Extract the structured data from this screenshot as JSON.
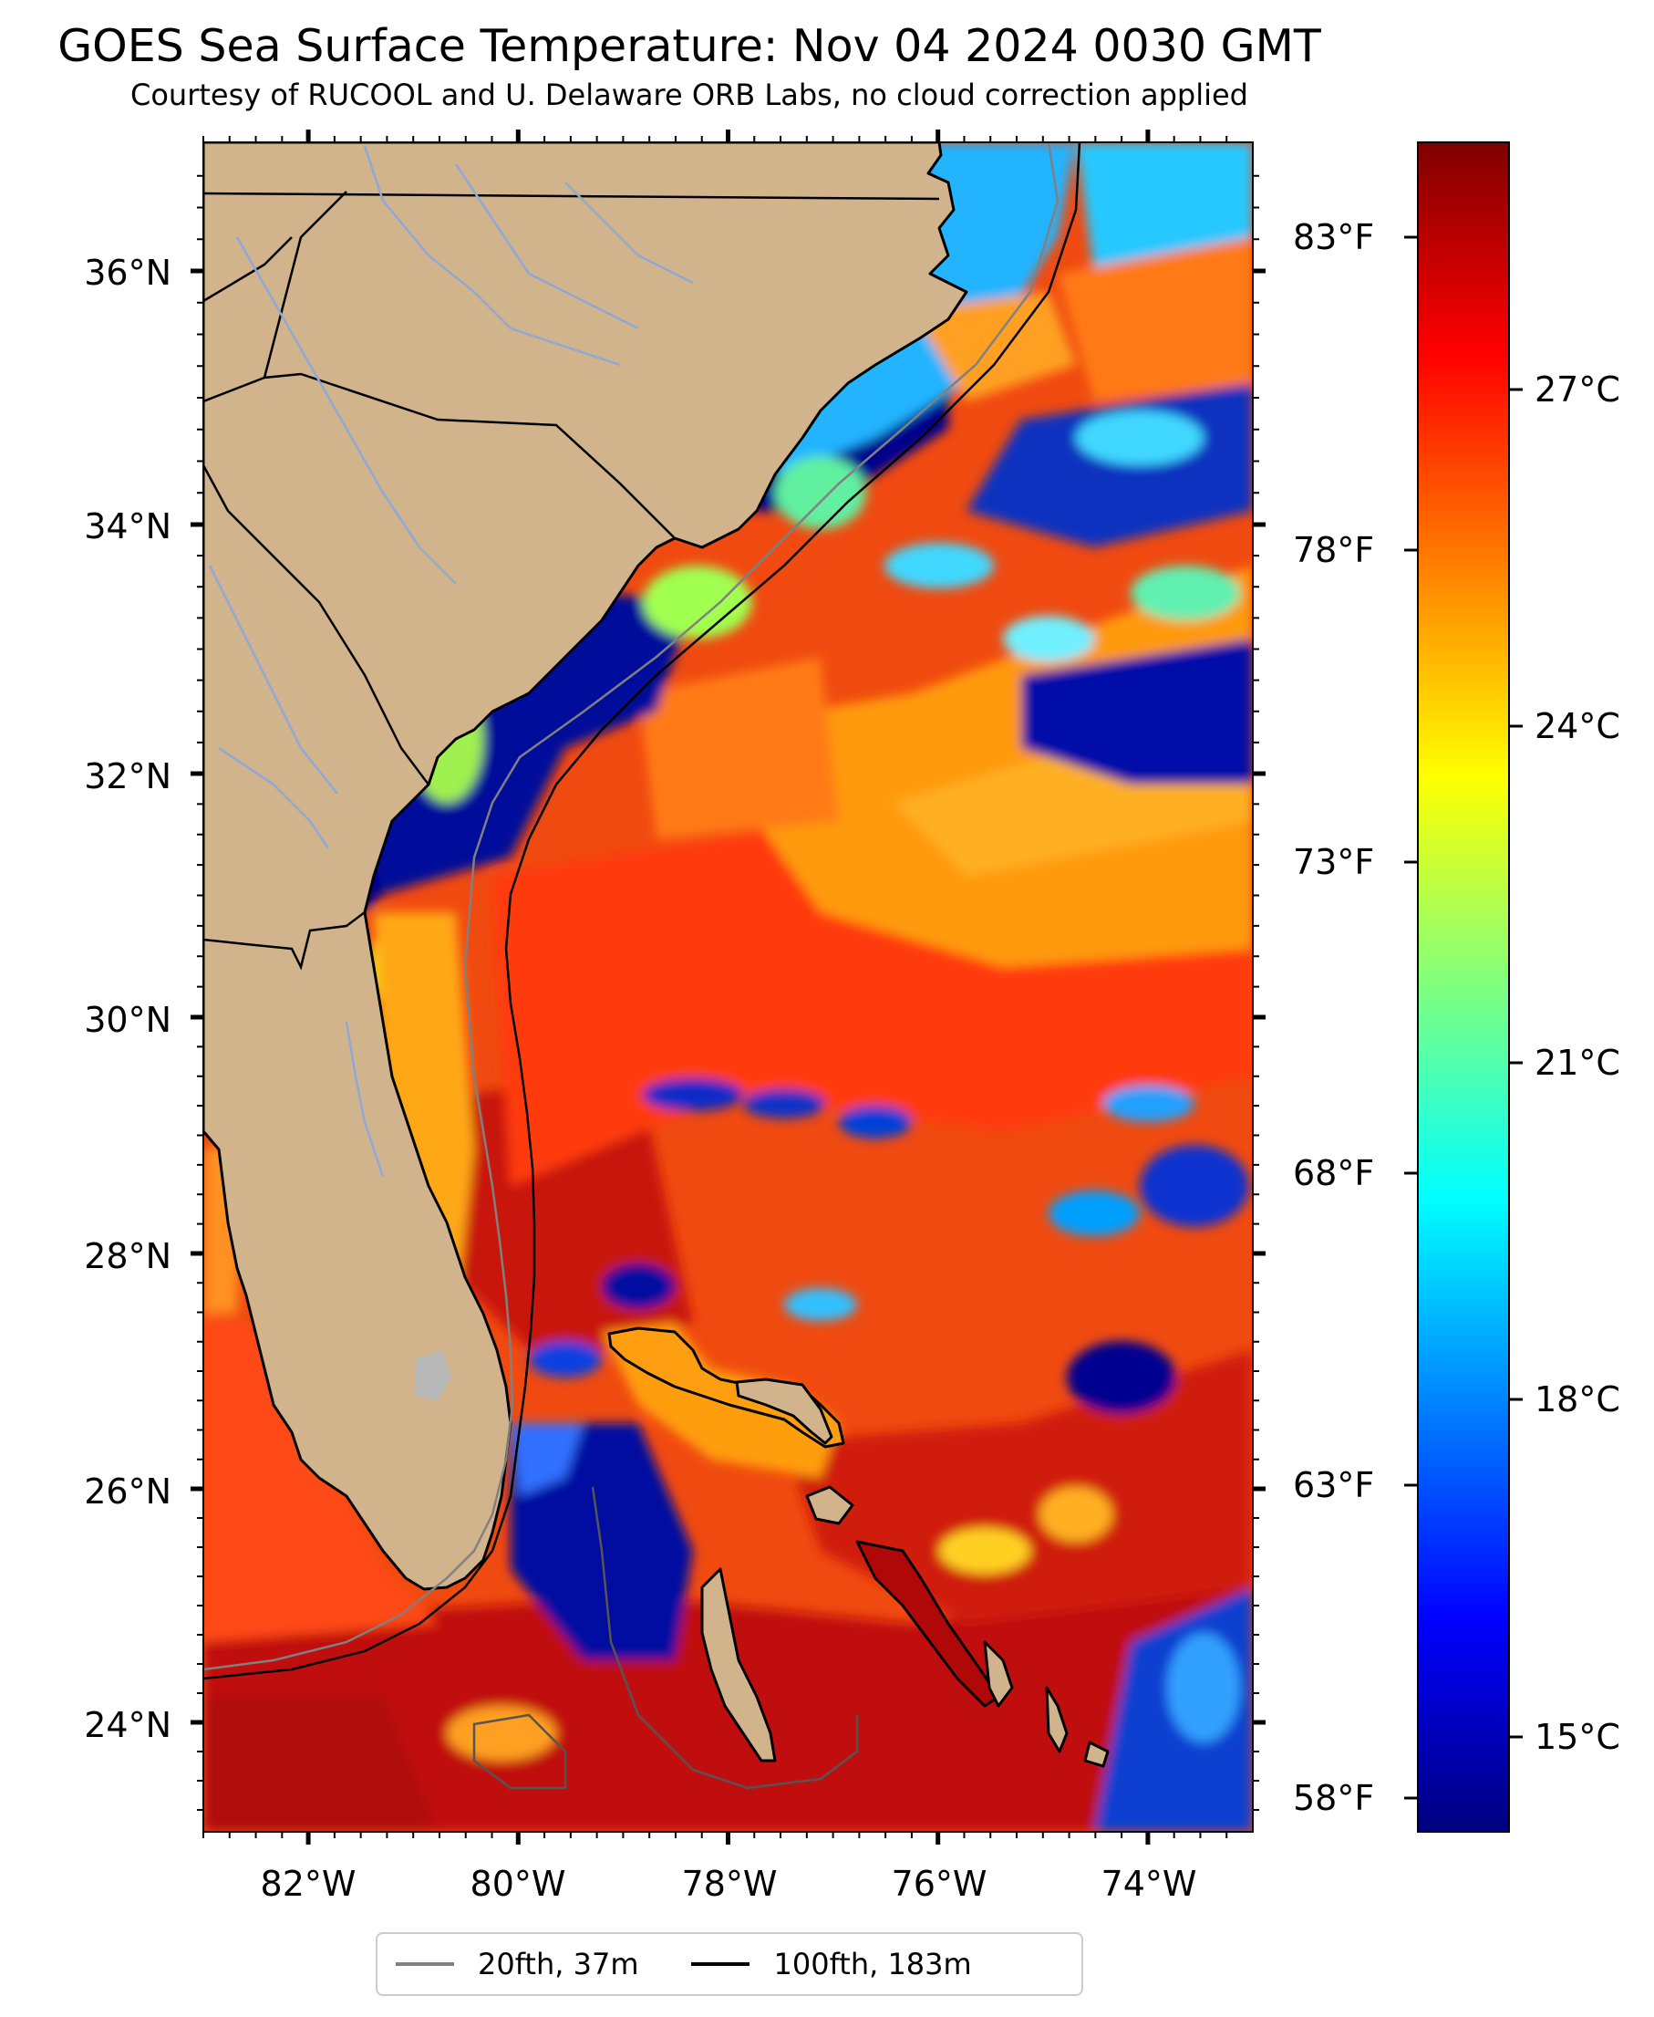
{
  "title": "GOES Sea Surface Temperature: Nov 04 2024 0030 GMT",
  "subtitle": "Courtesy of RUCOOL and U. Delaware ORB Labs, no cloud correction applied",
  "map": {
    "lon_range": [
      -83,
      -73
    ],
    "lat_range": [
      23.1,
      36.8
    ],
    "lat_labels": [
      "24°N",
      "26°N",
      "28°N",
      "30°N",
      "32°N",
      "34°N",
      "36°N"
    ],
    "lon_labels": [
      "82°W",
      "80°W",
      "78°W",
      "76°W",
      "74°W"
    ],
    "land_color": "#d2b48c",
    "river_color": "#8ea9d8",
    "isobath_20_color": "#808080",
    "isobath_100_color": "#000000"
  },
  "colorbar": {
    "celsius_labels": [
      "15°C",
      "18°C",
      "21°C",
      "24°C",
      "27°C"
    ],
    "fahrenheit_labels": [
      "58°F",
      "63°F",
      "68°F",
      "73°F",
      "78°F",
      "83°F"
    ],
    "colormap": "jet",
    "colors": [
      "#00007f",
      "#0000ff",
      "#007fff",
      "#00ffff",
      "#7fff7f",
      "#ffff00",
      "#ff7f00",
      "#ff0000",
      "#7f0000"
    ]
  },
  "legend": {
    "items": [
      {
        "label": "20fth, 37m",
        "color": "#808080"
      },
      {
        "label": "100fth, 183m",
        "color": "#000000"
      }
    ]
  }
}
